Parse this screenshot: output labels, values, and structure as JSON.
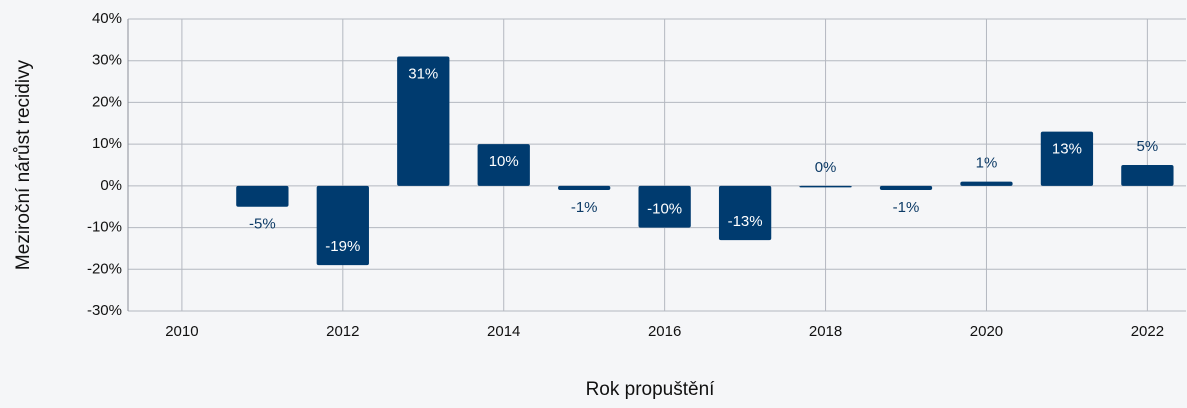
{
  "chart_data": {
    "type": "bar",
    "x_label": "Rok propuštění",
    "y_label": "Meziroční nárůst recidivy",
    "x": [
      2011,
      2012,
      2013,
      2014,
      2015,
      2016,
      2017,
      2018,
      2019,
      2020,
      2021,
      2022
    ],
    "values": [
      -5,
      -19,
      31,
      10,
      -1,
      -10,
      -13,
      0,
      -1,
      1,
      13,
      5
    ],
    "value_labels": [
      "-5%",
      "-19%",
      "31%",
      "10%",
      "-1%",
      "-10%",
      "-13%",
      "0%",
      "-1%",
      "1%",
      "13%",
      "5%"
    ],
    "color": "#003b6f",
    "xlim": [
      2009.33,
      2022.48
    ],
    "xticks": [
      2010,
      2012,
      2014,
      2016,
      2018,
      2020,
      2022
    ],
    "ylim": [
      -30,
      40
    ],
    "yticks": [
      {
        "value": -30,
        "label": "-30%"
      },
      {
        "value": -20,
        "label": "-20%"
      },
      {
        "value": -10,
        "label": "-10%"
      },
      {
        "value": 0,
        "label": "0%"
      },
      {
        "value": 10,
        "label": "10%"
      },
      {
        "value": 20,
        "label": "20%"
      },
      {
        "value": 30,
        "label": "30%"
      },
      {
        "value": 40,
        "label": "40%"
      }
    ],
    "grid": true
  }
}
